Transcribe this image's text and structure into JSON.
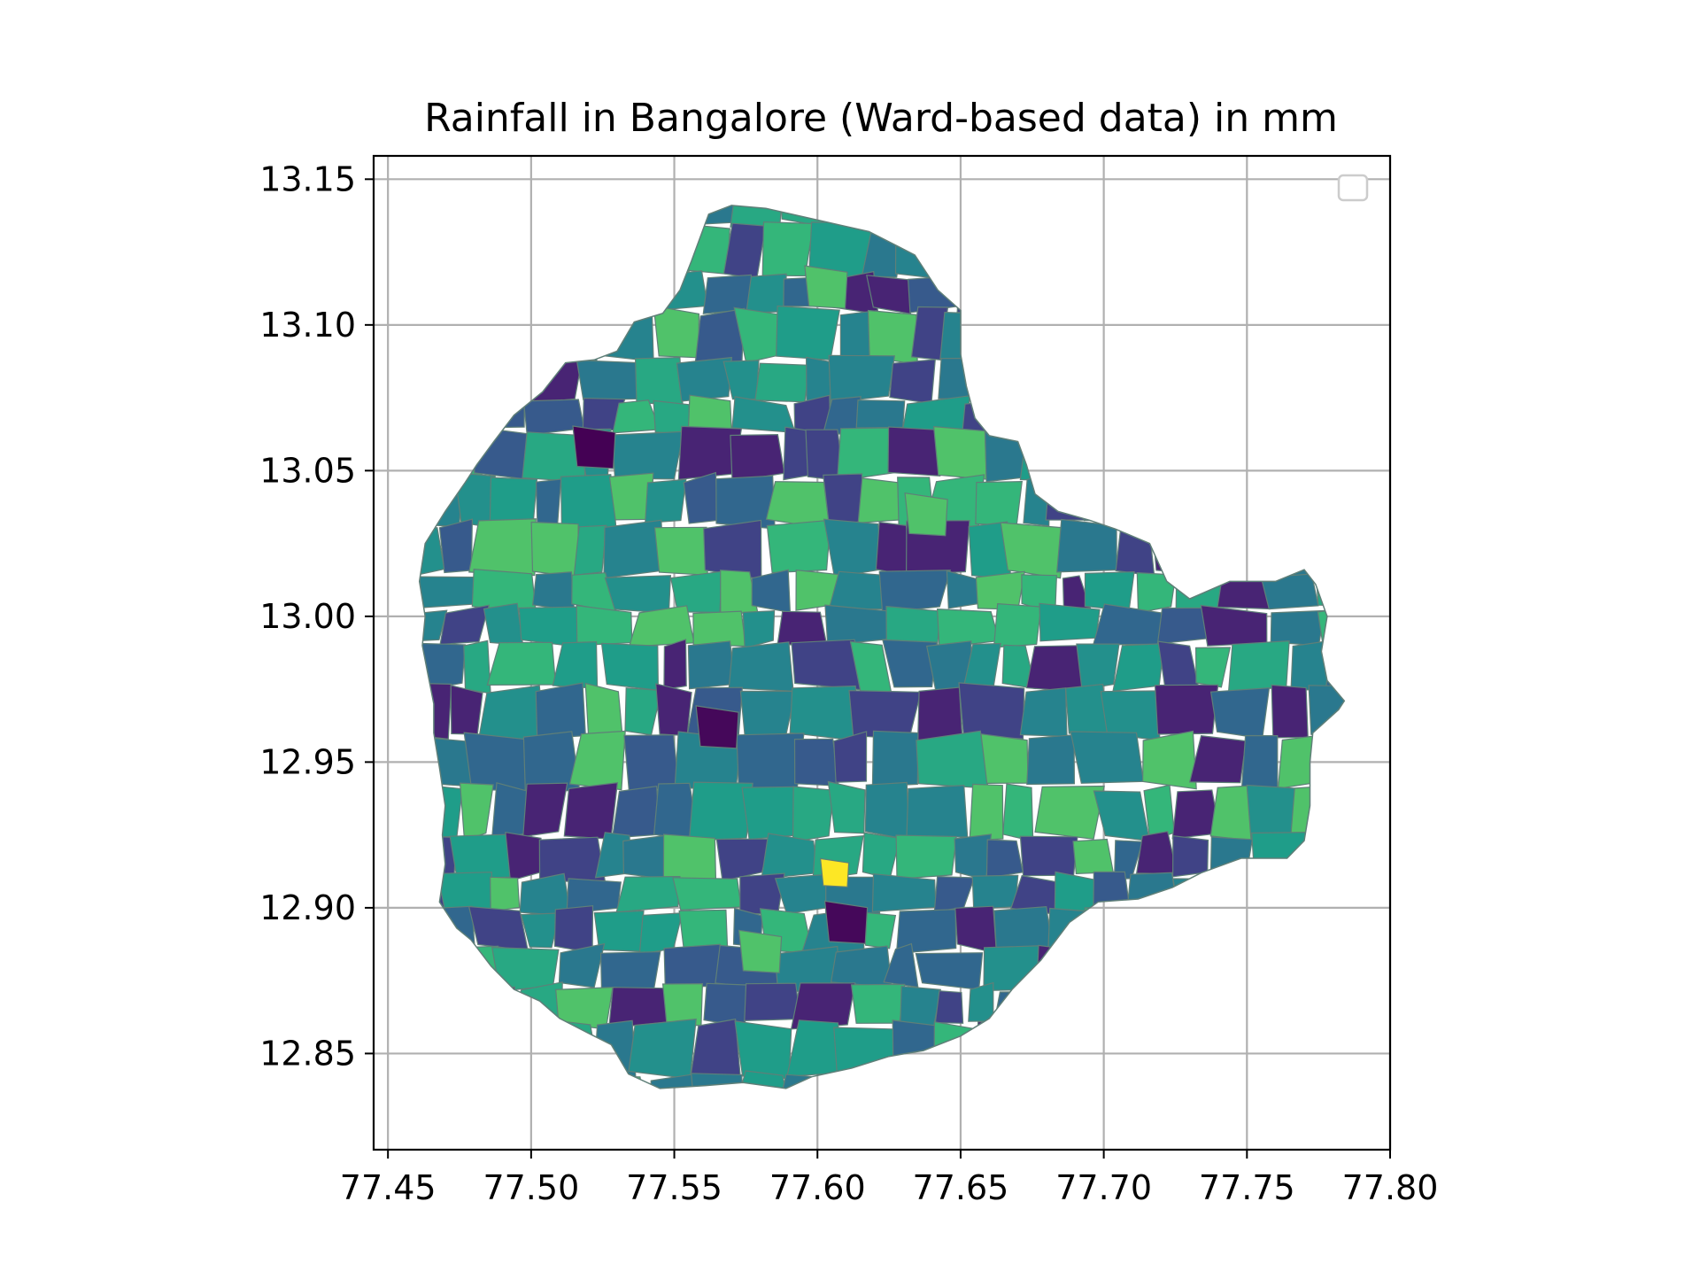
{
  "chart_data": {
    "type": "choropleth map",
    "title": "Rainfall in Bangalore (Ward-based data) in mm",
    "xlabel": "",
    "ylabel": "",
    "xlim": [
      77.445,
      77.8
    ],
    "ylim": [
      12.817,
      13.158
    ],
    "x_ticks": [
      "77.45",
      "77.50",
      "77.55",
      "77.60",
      "77.65",
      "77.70",
      "77.75",
      "77.80"
    ],
    "x_tick_values": [
      77.45,
      77.5,
      77.55,
      77.6,
      77.65,
      77.7,
      77.75,
      77.8
    ],
    "y_ticks": [
      "12.85",
      "12.90",
      "12.95",
      "13.00",
      "13.05",
      "13.10",
      "13.15"
    ],
    "y_tick_values": [
      12.85,
      12.9,
      12.95,
      13.0,
      13.05,
      13.1,
      13.15
    ],
    "grid": true,
    "legend": "top-right (empty)",
    "colormap": "viridis",
    "colors": {
      "background": "#ffffff",
      "grid": "#b0b0b0",
      "ward_edge": "#5f7f78",
      "max_ward": "#fde725"
    },
    "highlighted_wards": [
      {
        "lon": 77.606,
        "lat": 12.912,
        "level": 1.0
      },
      {
        "lon": 77.522,
        "lat": 13.058,
        "level": 0.0
      },
      {
        "lon": 77.565,
        "lat": 12.962,
        "level": 0.02
      },
      {
        "lon": 77.61,
        "lat": 12.895,
        "level": 0.02
      },
      {
        "lon": 77.603,
        "lat": 13.113,
        "level": 0.72
      },
      {
        "lon": 77.638,
        "lat": 13.035,
        "level": 0.72
      },
      {
        "lon": 77.58,
        "lat": 12.885,
        "level": 0.72
      }
    ]
  }
}
